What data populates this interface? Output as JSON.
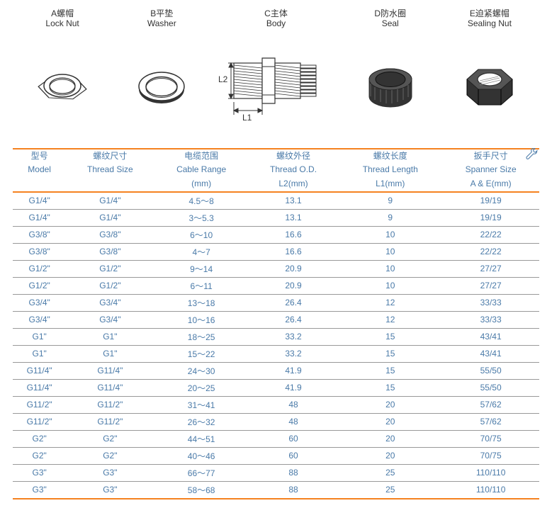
{
  "colors": {
    "accent": "#f58220",
    "header_text": "#4a7aa8",
    "body_text": "#4a7aa8",
    "row_divider": "#999999",
    "background": "#ffffff"
  },
  "parts": [
    {
      "code": "A",
      "cn": "A螺帽",
      "en": "Lock Nut"
    },
    {
      "code": "B",
      "cn": "B平垫",
      "en": "Washer"
    },
    {
      "code": "C",
      "cn": "C主体",
      "en": "Body"
    },
    {
      "code": "D",
      "cn": "D防水圈",
      "en": "Seal"
    },
    {
      "code": "E",
      "cn": "E迫紧螺帽",
      "en": "Sealing Nut"
    }
  ],
  "body_dims": {
    "l1": "L1",
    "l2": "L2"
  },
  "columns": [
    {
      "cn": "型号",
      "en": "Model",
      "sub": ""
    },
    {
      "cn": "螺纹尺寸",
      "en": "Thread Size",
      "sub": ""
    },
    {
      "cn": "电缆范围",
      "en": "Cable Range",
      "sub": "(mm)"
    },
    {
      "cn": "螺纹外径",
      "en": "Thread O.D.",
      "sub": "L2(mm)"
    },
    {
      "cn": "螺纹长度",
      "en": "Thread Length",
      "sub": "L1(mm)"
    },
    {
      "cn": "扳手尺寸",
      "en": "Spanner Size",
      "sub": "A & E(mm)"
    }
  ],
  "rows": [
    [
      "G1/4\"",
      "G1/4\"",
      "4.5～8",
      "13.1",
      "9",
      "19/19"
    ],
    [
      "G1/4\"",
      "G1/4\"",
      "3～5.3",
      "13.1",
      "9",
      "19/19"
    ],
    [
      "G3/8\"",
      "G3/8\"",
      "6～10",
      "16.6",
      "10",
      "22/22"
    ],
    [
      "G3/8\"",
      "G3/8\"",
      "4～7",
      "16.6",
      "10",
      "22/22"
    ],
    [
      "G1/2\"",
      "G1/2\"",
      "9～14",
      "20.9",
      "10",
      "27/27"
    ],
    [
      "G1/2\"",
      "G1/2\"",
      "6～11",
      "20.9",
      "10",
      "27/27"
    ],
    [
      "G3/4\"",
      "G3/4\"",
      "13～18",
      "26.4",
      "12",
      "33/33"
    ],
    [
      "G3/4\"",
      "G3/4\"",
      "10～16",
      "26.4",
      "12",
      "33/33"
    ],
    [
      "G1\"",
      "G1\"",
      "18～25",
      "33.2",
      "15",
      "43/41"
    ],
    [
      "G1\"",
      "G1\"",
      "15～22",
      "33.2",
      "15",
      "43/41"
    ],
    [
      "G11/4\"",
      "G11/4\"",
      "24～30",
      "41.9",
      "15",
      "55/50"
    ],
    [
      "G11/4\"",
      "G11/4\"",
      "20～25",
      "41.9",
      "15",
      "55/50"
    ],
    [
      "G11/2\"",
      "G11/2\"",
      "31～41",
      "48",
      "20",
      "57/62"
    ],
    [
      "G11/2\"",
      "G11/2\"",
      "26～32",
      "48",
      "20",
      "57/62"
    ],
    [
      "G2\"",
      "G2\"",
      "44～51",
      "60",
      "20",
      "70/75"
    ],
    [
      "G2\"",
      "G2\"",
      "40～46",
      "60",
      "20",
      "70/75"
    ],
    [
      "G3\"",
      "G3\"",
      "66～77",
      "88",
      "25",
      "110/110"
    ],
    [
      "G3\"",
      "G3\"",
      "58～68",
      "88",
      "25",
      "110/110"
    ]
  ]
}
